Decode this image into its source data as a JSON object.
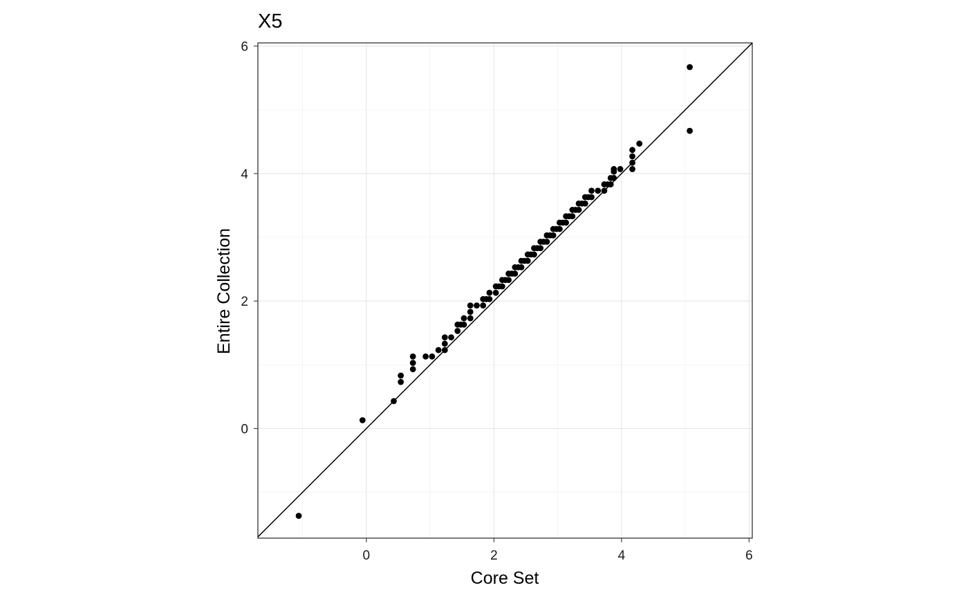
{
  "chart_data": {
    "type": "scatter",
    "title": "X5",
    "xlabel": "Core Set",
    "ylabel": "Entire Collection",
    "xlim": [
      -1.7,
      6.05
    ],
    "ylim": [
      -1.72,
      6.05
    ],
    "x_ticks": [
      0,
      2,
      4,
      6
    ],
    "y_ticks": [
      0,
      2,
      4,
      6
    ],
    "x_tick_labels": [
      "0",
      "2",
      "4",
      "6"
    ],
    "y_tick_labels": [
      "0",
      "2",
      "4",
      "6"
    ],
    "grid": true,
    "reference_line": "y = x",
    "points": [
      [
        -1.06,
        -1.37
      ],
      [
        -0.06,
        0.13
      ],
      [
        0.43,
        0.43
      ],
      [
        0.54,
        0.73
      ],
      [
        0.54,
        0.83
      ],
      [
        0.73,
        0.93
      ],
      [
        0.73,
        1.03
      ],
      [
        0.73,
        1.13
      ],
      [
        0.93,
        1.13
      ],
      [
        1.03,
        1.13
      ],
      [
        1.13,
        1.23
      ],
      [
        1.23,
        1.23
      ],
      [
        1.23,
        1.33
      ],
      [
        1.23,
        1.43
      ],
      [
        1.33,
        1.43
      ],
      [
        1.43,
        1.53
      ],
      [
        1.43,
        1.63
      ],
      [
        1.48,
        1.63
      ],
      [
        1.53,
        1.63
      ],
      [
        1.53,
        1.73
      ],
      [
        1.63,
        1.73
      ],
      [
        1.63,
        1.83
      ],
      [
        1.63,
        1.93
      ],
      [
        1.73,
        1.93
      ],
      [
        1.83,
        1.93
      ],
      [
        1.83,
        2.03
      ],
      [
        1.88,
        2.03
      ],
      [
        1.93,
        2.03
      ],
      [
        1.93,
        2.13
      ],
      [
        2.03,
        2.13
      ],
      [
        2.03,
        2.23
      ],
      [
        2.08,
        2.23
      ],
      [
        2.13,
        2.23
      ],
      [
        2.13,
        2.33
      ],
      [
        2.18,
        2.33
      ],
      [
        2.23,
        2.33
      ],
      [
        2.23,
        2.43
      ],
      [
        2.28,
        2.43
      ],
      [
        2.33,
        2.43
      ],
      [
        2.33,
        2.53
      ],
      [
        2.38,
        2.53
      ],
      [
        2.43,
        2.53
      ],
      [
        2.43,
        2.63
      ],
      [
        2.48,
        2.63
      ],
      [
        2.53,
        2.63
      ],
      [
        2.53,
        2.73
      ],
      [
        2.58,
        2.73
      ],
      [
        2.63,
        2.73
      ],
      [
        2.63,
        2.83
      ],
      [
        2.68,
        2.83
      ],
      [
        2.73,
        2.83
      ],
      [
        2.73,
        2.93
      ],
      [
        2.78,
        2.93
      ],
      [
        2.83,
        2.93
      ],
      [
        2.83,
        3.03
      ],
      [
        2.88,
        3.03
      ],
      [
        2.93,
        3.03
      ],
      [
        2.93,
        3.13
      ],
      [
        2.98,
        3.13
      ],
      [
        3.03,
        3.13
      ],
      [
        3.03,
        3.23
      ],
      [
        3.08,
        3.23
      ],
      [
        3.13,
        3.23
      ],
      [
        3.13,
        3.33
      ],
      [
        3.18,
        3.33
      ],
      [
        3.23,
        3.33
      ],
      [
        3.23,
        3.43
      ],
      [
        3.28,
        3.43
      ],
      [
        3.33,
        3.43
      ],
      [
        3.33,
        3.53
      ],
      [
        3.38,
        3.53
      ],
      [
        3.43,
        3.53
      ],
      [
        3.43,
        3.63
      ],
      [
        3.48,
        3.63
      ],
      [
        3.53,
        3.63
      ],
      [
        3.53,
        3.73
      ],
      [
        3.63,
        3.73
      ],
      [
        3.73,
        3.73
      ],
      [
        3.73,
        3.83
      ],
      [
        3.78,
        3.83
      ],
      [
        3.83,
        3.83
      ],
      [
        3.83,
        3.93
      ],
      [
        3.88,
        3.93
      ],
      [
        3.88,
        4.03
      ],
      [
        3.88,
        4.07
      ],
      [
        3.98,
        4.07
      ],
      [
        4.17,
        4.07
      ],
      [
        4.17,
        4.17
      ],
      [
        4.17,
        4.27
      ],
      [
        4.17,
        4.37
      ],
      [
        4.28,
        4.47
      ],
      [
        5.07,
        4.67
      ],
      [
        5.07,
        5.67
      ]
    ]
  }
}
